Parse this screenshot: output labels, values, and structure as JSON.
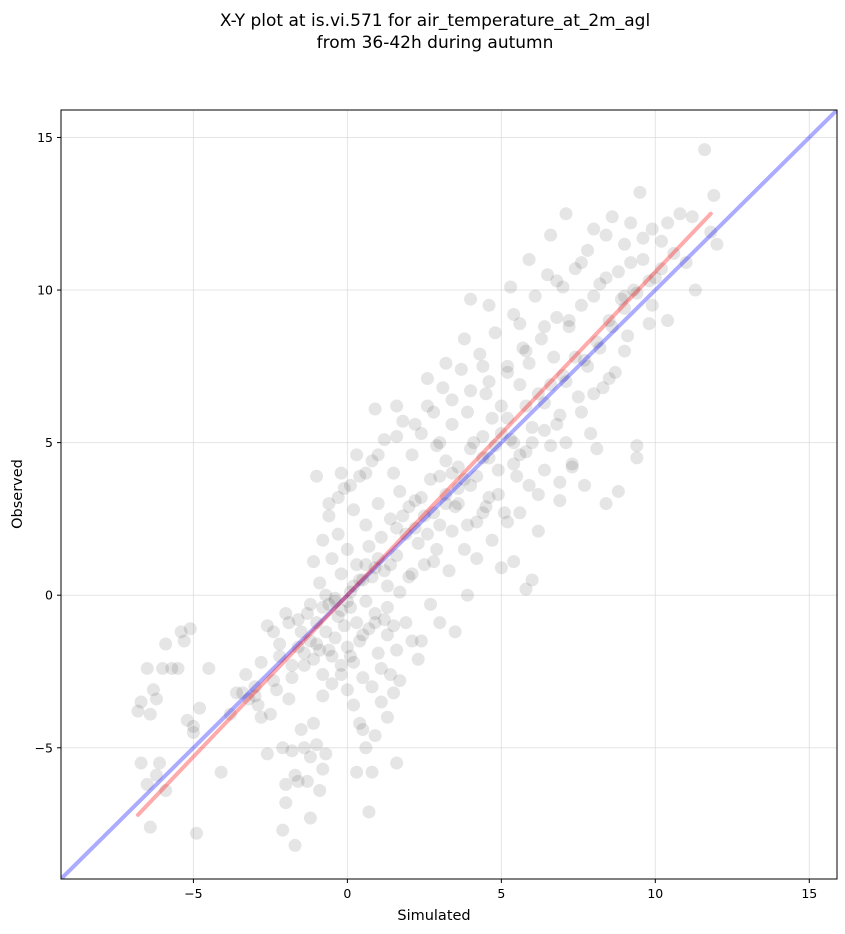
{
  "chart_data": {
    "type": "scatter",
    "title_lines": [
      "X-Y plot at is.vi.571 for air_temperature_at_2m_agl",
      "from 36-42h during autumn"
    ],
    "xlabel": "Simulated",
    "ylabel": "Observed",
    "xlim": [
      -9.3,
      15.9
    ],
    "ylim": [
      -9.3,
      15.9
    ],
    "xticks": [
      -5,
      0,
      5,
      10,
      15
    ],
    "yticks": [
      -5,
      0,
      5,
      10,
      15
    ],
    "xtick_labels": [
      "−5",
      "0",
      "5",
      "10",
      "15"
    ],
    "ytick_labels": [
      "−5",
      "0",
      "5",
      "10",
      "15"
    ],
    "grid": true,
    "lines": [
      {
        "kind": "one-to-one",
        "color": "#0000ff",
        "x": [
          -9.3,
          15.9
        ],
        "y": [
          -9.3,
          15.9
        ]
      },
      {
        "kind": "regression",
        "color": "#ff0000",
        "x": [
          -6.8,
          11.8
        ],
        "y": [
          -7.2,
          12.5
        ]
      }
    ],
    "point_color": "#000000",
    "points": [
      [
        -6.8,
        -3.8
      ],
      [
        -6.7,
        -3.5
      ],
      [
        -6.5,
        -2.4
      ],
      [
        -6.4,
        -3.9
      ],
      [
        -6.3,
        -3.1
      ],
      [
        -6.2,
        -3.4
      ],
      [
        -6.0,
        -2.4
      ],
      [
        -5.9,
        -1.6
      ],
      [
        -5.7,
        -2.4
      ],
      [
        -5.5,
        -2.4
      ],
      [
        -5.4,
        -1.2
      ],
      [
        -5.3,
        -1.5
      ],
      [
        -5.2,
        -4.1
      ],
      [
        -5.1,
        -1.1
      ],
      [
        -5.0,
        -4.5
      ],
      [
        -4.8,
        -3.7
      ],
      [
        -4.5,
        -2.4
      ],
      [
        -6.7,
        -5.5
      ],
      [
        -6.5,
        -6.2
      ],
      [
        -6.4,
        -7.6
      ],
      [
        -6.2,
        -5.9
      ],
      [
        -6.1,
        -5.5
      ],
      [
        -5.9,
        -6.4
      ],
      [
        -5.0,
        -4.3
      ],
      [
        -4.9,
        -7.8
      ],
      [
        -4.1,
        -5.8
      ],
      [
        -3.8,
        -3.9
      ],
      [
        -3.4,
        -3.2
      ],
      [
        -3.2,
        -3.4
      ],
      [
        -3.0,
        -3.3
      ],
      [
        -2.9,
        -3.6
      ],
      [
        -2.8,
        -4.0
      ],
      [
        -2.6,
        -5.2
      ],
      [
        -2.5,
        -3.9
      ],
      [
        -2.3,
        -3.1
      ],
      [
        -2.1,
        -5.0
      ],
      [
        -2.0,
        -6.2
      ],
      [
        -2.0,
        -6.8
      ],
      [
        -1.9,
        -3.4
      ],
      [
        -1.8,
        -5.1
      ],
      [
        -1.7,
        -5.9
      ],
      [
        -1.6,
        -6.1
      ],
      [
        -1.5,
        -4.4
      ],
      [
        -1.4,
        -5.0
      ],
      [
        -1.3,
        -6.1
      ],
      [
        -1.2,
        -5.3
      ],
      [
        -1.1,
        -4.2
      ],
      [
        -1.0,
        -4.9
      ],
      [
        -0.9,
        -6.4
      ],
      [
        -0.8,
        -5.7
      ],
      [
        -0.7,
        -5.2
      ],
      [
        -2.6,
        -1.0
      ],
      [
        -2.4,
        -1.2
      ],
      [
        -2.2,
        -2.0
      ],
      [
        -2.0,
        -0.6
      ],
      [
        -1.9,
        -0.9
      ],
      [
        -1.8,
        -2.7
      ],
      [
        -1.6,
        -1.7
      ],
      [
        -1.5,
        -1.2
      ],
      [
        -1.4,
        -2.3
      ],
      [
        -1.3,
        -0.6
      ],
      [
        -1.2,
        -1.5
      ],
      [
        -1.1,
        -2.1
      ],
      [
        -2.1,
        -7.7
      ],
      [
        -1.7,
        -8.2
      ],
      [
        -1.2,
        -7.3
      ],
      [
        -1.0,
        -0.9
      ],
      [
        -0.9,
        -1.8
      ],
      [
        -0.8,
        -2.6
      ],
      [
        -0.7,
        -1.2
      ],
      [
        -0.6,
        -0.3
      ],
      [
        -0.5,
        -2.0
      ],
      [
        -0.4,
        -1.4
      ],
      [
        -0.3,
        -0.7
      ],
      [
        -0.2,
        -2.6
      ],
      [
        -0.1,
        -1.0
      ],
      [
        0.0,
        -1.7
      ],
      [
        0.1,
        -0.4
      ],
      [
        0.2,
        -2.2
      ],
      [
        0.3,
        -0.9
      ],
      [
        0.4,
        -1.5
      ],
      [
        0.5,
        -2.7
      ],
      [
        0.6,
        -0.2
      ],
      [
        0.7,
        -1.1
      ],
      [
        0.8,
        -3.0
      ],
      [
        0.9,
        -0.6
      ],
      [
        1.0,
        -1.9
      ],
      [
        1.1,
        -2.4
      ],
      [
        1.2,
        -0.8
      ],
      [
        1.3,
        -1.3
      ],
      [
        1.4,
        -2.6
      ],
      [
        1.5,
        -1.0
      ],
      [
        1.6,
        -1.8
      ],
      [
        1.7,
        -2.8
      ],
      [
        1.9,
        -0.9
      ],
      [
        2.1,
        -1.5
      ],
      [
        2.3,
        -2.1
      ],
      [
        0.0,
        -3.1
      ],
      [
        0.2,
        -3.6
      ],
      [
        0.4,
        -4.2
      ],
      [
        0.5,
        -4.4
      ],
      [
        0.6,
        -5.0
      ],
      [
        0.8,
        -5.8
      ],
      [
        0.9,
        -4.6
      ],
      [
        1.1,
        -3.5
      ],
      [
        1.3,
        -4.0
      ],
      [
        1.5,
        -3.2
      ],
      [
        1.6,
        -5.5
      ],
      [
        0.3,
        -5.8
      ],
      [
        0.7,
        -7.1
      ],
      [
        -1.1,
        1.1
      ],
      [
        -0.9,
        0.4
      ],
      [
        -0.8,
        1.8
      ],
      [
        -0.7,
        0.0
      ],
      [
        -0.6,
        2.6
      ],
      [
        -0.5,
        1.2
      ],
      [
        -0.4,
        -0.2
      ],
      [
        -0.3,
        2.0
      ],
      [
        -0.2,
        0.7
      ],
      [
        -0.1,
        3.5
      ],
      [
        0.0,
        1.5
      ],
      [
        0.1,
        0.1
      ],
      [
        0.2,
        2.8
      ],
      [
        0.3,
        1.0
      ],
      [
        0.4,
        3.9
      ],
      [
        0.5,
        0.5
      ],
      [
        0.6,
        2.3
      ],
      [
        0.7,
        1.6
      ],
      [
        0.8,
        4.4
      ],
      [
        0.9,
        0.9
      ],
      [
        1.0,
        3.0
      ],
      [
        1.1,
        1.9
      ],
      [
        1.2,
        5.1
      ],
      [
        1.3,
        0.3
      ],
      [
        1.4,
        2.5
      ],
      [
        1.5,
        4.0
      ],
      [
        1.6,
        1.3
      ],
      [
        1.7,
        3.4
      ],
      [
        1.8,
        5.7
      ],
      [
        1.9,
        2.0
      ],
      [
        2.0,
        0.6
      ],
      [
        2.1,
        4.6
      ],
      [
        2.2,
        3.1
      ],
      [
        2.3,
        1.7
      ],
      [
        2.4,
        5.3
      ],
      [
        2.5,
        2.6
      ],
      [
        2.6,
        6.2
      ],
      [
        2.7,
        3.8
      ],
      [
        2.8,
        1.1
      ],
      [
        2.9,
        4.9
      ],
      [
        3.0,
        2.3
      ],
      [
        3.1,
        6.8
      ],
      [
        3.2,
        3.3
      ],
      [
        3.3,
        0.8
      ],
      [
        3.4,
        5.6
      ],
      [
        3.5,
        2.9
      ],
      [
        3.6,
        4.2
      ],
      [
        3.7,
        7.4
      ],
      [
        3.8,
        1.5
      ],
      [
        3.9,
        6.0
      ],
      [
        4.0,
        3.6
      ],
      [
        4.1,
        5.0
      ],
      [
        4.2,
        2.4
      ],
      [
        4.3,
        7.9
      ],
      [
        4.4,
        4.5
      ],
      [
        4.5,
        6.6
      ],
      [
        4.6,
        3.2
      ],
      [
        4.7,
        5.8
      ],
      [
        4.8,
        8.6
      ],
      [
        4.9,
        4.1
      ],
      [
        5.0,
        6.2
      ],
      [
        5.1,
        2.7
      ],
      [
        5.2,
        7.3
      ],
      [
        5.3,
        5.1
      ],
      [
        5.4,
        9.2
      ],
      [
        5.5,
        3.9
      ],
      [
        5.6,
        6.9
      ],
      [
        5.7,
        8.1
      ],
      [
        5.8,
        4.7
      ],
      [
        5.9,
        7.6
      ],
      [
        6.0,
        5.5
      ],
      [
        6.1,
        9.8
      ],
      [
        6.2,
        3.3
      ],
      [
        6.3,
        8.4
      ],
      [
        6.4,
        6.3
      ],
      [
        6.5,
        10.5
      ],
      [
        6.6,
        4.9
      ],
      [
        6.7,
        7.8
      ],
      [
        6.8,
        9.1
      ],
      [
        6.9,
        5.9
      ],
      [
        7.0,
        10.1
      ],
      [
        7.1,
        7.0
      ],
      [
        7.2,
        8.8
      ],
      [
        7.3,
        4.3
      ],
      [
        7.4,
        10.7
      ],
      [
        7.5,
        6.5
      ],
      [
        7.6,
        9.5
      ],
      [
        7.7,
        7.7
      ],
      [
        7.8,
        11.3
      ],
      [
        7.9,
        5.3
      ],
      [
        8.0,
        12.0
      ],
      [
        8.1,
        8.3
      ],
      [
        8.2,
        10.2
      ],
      [
        8.3,
        6.8
      ],
      [
        8.4,
        11.8
      ],
      [
        8.5,
        9.0
      ],
      [
        8.6,
        12.4
      ],
      [
        8.7,
        7.3
      ],
      [
        8.8,
        10.6
      ],
      [
        8.9,
        9.7
      ],
      [
        9.0,
        11.5
      ],
      [
        9.1,
        8.5
      ],
      [
        9.2,
        12.2
      ],
      [
        9.3,
        10.0
      ],
      [
        9.4,
        4.5
      ],
      [
        9.5,
        13.2
      ],
      [
        9.6,
        11.0
      ],
      [
        9.8,
        8.9
      ],
      [
        9.9,
        12.0
      ],
      [
        10.0,
        10.4
      ],
      [
        10.2,
        11.6
      ],
      [
        10.4,
        9.0
      ],
      [
        10.6,
        11.2
      ],
      [
        11.0,
        10.9
      ],
      [
        11.2,
        12.4
      ],
      [
        11.3,
        10.0
      ],
      [
        11.6,
        14.6
      ],
      [
        11.8,
        11.9
      ],
      [
        11.9,
        13.1
      ],
      [
        12.0,
        11.5
      ],
      [
        8.4,
        3.0
      ],
      [
        8.8,
        3.4
      ],
      [
        9.4,
        4.9
      ],
      [
        7.3,
        4.2
      ],
      [
        6.9,
        3.7
      ],
      [
        6.2,
        2.1
      ],
      [
        6.0,
        0.5
      ],
      [
        5.8,
        0.2
      ],
      [
        5.6,
        2.7
      ],
      [
        5.4,
        1.1
      ],
      [
        5.2,
        2.4
      ],
      [
        5.0,
        0.9
      ],
      [
        4.7,
        1.8
      ],
      [
        4.5,
        2.9
      ],
      [
        4.2,
        1.2
      ],
      [
        3.9,
        0.0
      ],
      [
        3.5,
        -1.2
      ],
      [
        3.0,
        -0.9
      ],
      [
        2.7,
        -0.3
      ],
      [
        2.4,
        -1.5
      ],
      [
        4.0,
        9.7
      ],
      [
        4.6,
        9.5
      ],
      [
        5.3,
        10.1
      ],
      [
        5.9,
        11.0
      ],
      [
        6.6,
        11.8
      ],
      [
        7.1,
        12.5
      ],
      [
        3.0,
        5.0
      ],
      [
        3.2,
        4.4
      ],
      [
        3.6,
        3.0
      ],
      [
        4.0,
        4.8
      ],
      [
        4.4,
        5.2
      ],
      [
        4.8,
        4.9
      ],
      [
        5.0,
        5.3
      ],
      [
        5.4,
        5.0
      ],
      [
        5.6,
        4.6
      ],
      [
        6.0,
        5.0
      ],
      [
        6.4,
        5.4
      ],
      [
        6.8,
        5.6
      ],
      [
        2.0,
        2.9
      ],
      [
        2.4,
        3.2
      ],
      [
        2.8,
        2.7
      ],
      [
        3.2,
        3.0
      ],
      [
        3.6,
        3.5
      ],
      [
        1.0,
        1.2
      ],
      [
        1.2,
        0.8
      ],
      [
        1.4,
        1.0
      ],
      [
        0.8,
        0.6
      ],
      [
        0.6,
        1.0
      ],
      [
        0.4,
        0.5
      ],
      [
        0.2,
        0.3
      ],
      [
        0.0,
        -0.2
      ],
      [
        -0.2,
        -0.5
      ],
      [
        -0.4,
        -0.1
      ],
      [
        1.6,
        2.2
      ],
      [
        1.8,
        2.6
      ],
      [
        2.2,
        2.2
      ],
      [
        2.6,
        2.0
      ],
      [
        3.0,
        3.9
      ],
      [
        3.4,
        4.0
      ],
      [
        3.8,
        3.8
      ],
      [
        4.2,
        3.9
      ],
      [
        4.6,
        4.5
      ],
      [
        5.2,
        5.8
      ],
      [
        5.8,
        6.2
      ],
      [
        6.2,
        6.6
      ],
      [
        6.6,
        6.9
      ],
      [
        7.0,
        7.2
      ],
      [
        7.4,
        7.8
      ],
      [
        7.8,
        7.5
      ],
      [
        8.2,
        8.1
      ],
      [
        8.6,
        8.8
      ],
      [
        9.0,
        9.4
      ],
      [
        9.4,
        9.9
      ],
      [
        9.8,
        10.3
      ],
      [
        10.2,
        10.7
      ],
      [
        -0.6,
        -1.8
      ],
      [
        -0.8,
        -0.4
      ],
      [
        -1.0,
        -1.6
      ],
      [
        -1.2,
        -0.3
      ],
      [
        -1.4,
        -1.9
      ],
      [
        -1.6,
        -0.8
      ],
      [
        -1.8,
        -2.3
      ],
      [
        -2.2,
        -1.6
      ],
      [
        -2.4,
        -2.8
      ],
      [
        -2.8,
        -2.2
      ],
      [
        -3.0,
        -3.0
      ],
      [
        -3.3,
        -2.6
      ],
      [
        -3.6,
        -3.2
      ],
      [
        5.6,
        8.9
      ],
      [
        6.8,
        10.3
      ],
      [
        7.6,
        10.9
      ],
      [
        8.4,
        10.4
      ],
      [
        9.2,
        10.9
      ],
      [
        9.6,
        11.7
      ],
      [
        10.8,
        12.5
      ],
      [
        10.4,
        12.2
      ],
      [
        9.9,
        9.5
      ],
      [
        9.0,
        9.8
      ],
      [
        8.0,
        9.8
      ],
      [
        7.2,
        9.0
      ],
      [
        6.4,
        8.8
      ],
      [
        5.8,
        8.0
      ],
      [
        5.2,
        7.5
      ],
      [
        4.6,
        7.0
      ],
      [
        4.0,
        6.7
      ],
      [
        3.4,
        6.4
      ],
      [
        2.8,
        6.0
      ],
      [
        2.2,
        5.6
      ],
      [
        1.6,
        5.2
      ],
      [
        1.0,
        4.6
      ],
      [
        0.6,
        4.0
      ],
      [
        0.1,
        3.6
      ],
      [
        -0.3,
        3.2
      ],
      [
        3.8,
        8.4
      ],
      [
        3.2,
        7.6
      ],
      [
        2.6,
        7.1
      ],
      [
        4.4,
        7.5
      ],
      [
        0.9,
        6.1
      ],
      [
        1.6,
        6.2
      ],
      [
        -0.2,
        4.0
      ],
      [
        0.3,
        4.6
      ],
      [
        -1.0,
        3.9
      ],
      [
        -0.6,
        3.0
      ],
      [
        7.1,
        5.0
      ],
      [
        7.6,
        6.0
      ],
      [
        8.0,
        6.6
      ],
      [
        8.5,
        7.1
      ],
      [
        9.0,
        8.0
      ],
      [
        7.7,
        3.6
      ],
      [
        8.1,
        4.8
      ],
      [
        6.9,
        3.1
      ],
      [
        6.4,
        4.1
      ],
      [
        5.9,
        3.6
      ],
      [
        5.4,
        4.3
      ],
      [
        4.9,
        3.3
      ],
      [
        4.4,
        2.7
      ],
      [
        3.9,
        2.3
      ],
      [
        3.4,
        2.1
      ],
      [
        2.9,
        1.5
      ],
      [
        2.5,
        1.0
      ],
      [
        2.1,
        0.7
      ],
      [
        1.7,
        0.1
      ],
      [
        1.3,
        -0.4
      ],
      [
        0.9,
        -0.9
      ],
      [
        0.5,
        -1.3
      ],
      [
        0.1,
        -2.0
      ],
      [
        -0.2,
        -2.3
      ],
      [
        -0.5,
        -2.9
      ],
      [
        -0.8,
        -3.3
      ]
    ]
  }
}
